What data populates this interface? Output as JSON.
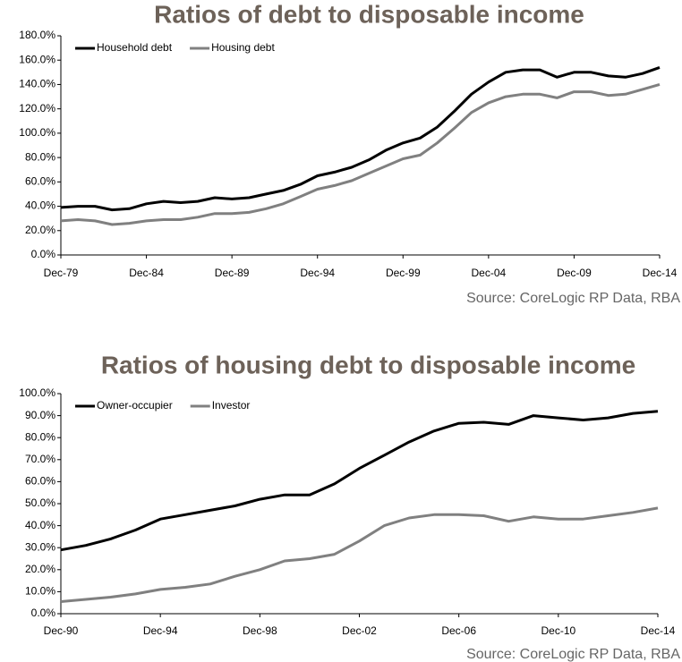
{
  "chart_data": [
    {
      "type": "line",
      "title": "Ratios of debt to disposable income",
      "source": "Source: CoreLogic RP Data, RBA",
      "categories": [
        "Dec-79",
        null,
        null,
        null,
        null,
        "Dec-84",
        null,
        null,
        null,
        null,
        "Dec-89",
        null,
        null,
        null,
        null,
        "Dec-94",
        null,
        null,
        null,
        null,
        "Dec-99",
        null,
        null,
        null,
        null,
        "Dec-04",
        null,
        null,
        null,
        null,
        "Dec-09",
        null,
        null,
        null,
        null,
        "Dec-14"
      ],
      "series": [
        {
          "name": "Household debt",
          "color": "#000000",
          "values": [
            39,
            40,
            40,
            37,
            38,
            42,
            44,
            43,
            44,
            47,
            46,
            47,
            50,
            53,
            58,
            65,
            68,
            72,
            78,
            86,
            92,
            96,
            105,
            118,
            132,
            142,
            150,
            152,
            152,
            146,
            150,
            150,
            147,
            146,
            149,
            154
          ]
        },
        {
          "name": "Housing debt",
          "color": "#808080",
          "values": [
            28,
            29,
            28,
            25,
            26,
            28,
            29,
            29,
            31,
            34,
            34,
            35,
            38,
            42,
            48,
            54,
            57,
            61,
            67,
            73,
            79,
            82,
            92,
            104,
            117,
            125,
            130,
            132,
            132,
            129,
            134,
            134,
            131,
            132,
            136,
            140
          ]
        }
      ],
      "ylim": [
        0,
        180
      ],
      "yticks": [
        {
          "value": 0,
          "label": "0.0%"
        },
        {
          "value": 20,
          "label": "20.0%"
        },
        {
          "value": 40,
          "label": "40.0%"
        },
        {
          "value": 60,
          "label": "60.0%"
        },
        {
          "value": 80,
          "label": "80.0%"
        },
        {
          "value": 100,
          "label": "100.0%"
        },
        {
          "value": 120,
          "label": "120.0%"
        },
        {
          "value": 140,
          "label": "140.0%"
        },
        {
          "value": 160,
          "label": "160.0%"
        },
        {
          "value": 180,
          "label": "180.0%"
        }
      ],
      "grid": false,
      "legend": "upper left"
    },
    {
      "type": "line",
      "title": "Ratios of housing debt to disposable income",
      "source": "Source: CoreLogic RP Data, RBA",
      "categories": [
        "Dec-90",
        null,
        null,
        null,
        "Dec-94",
        null,
        null,
        null,
        "Dec-98",
        null,
        null,
        null,
        "Dec-02",
        null,
        null,
        null,
        "Dec-06",
        null,
        null,
        null,
        "Dec-10",
        null,
        null,
        null,
        "Dec-14"
      ],
      "series": [
        {
          "name": "Owner-occupier",
          "color": "#000000",
          "values": [
            29,
            31,
            34,
            38,
            43,
            45,
            47,
            49,
            52,
            54,
            54,
            59,
            66,
            72,
            78,
            83,
            86.5,
            87,
            86,
            90,
            89,
            88,
            89,
            91,
            92
          ]
        },
        {
          "name": "Investor",
          "color": "#808080",
          "values": [
            5.5,
            6.5,
            7.5,
            9,
            11,
            12,
            13.5,
            17,
            20,
            24,
            25,
            27,
            33,
            40,
            43.5,
            45,
            45,
            44.5,
            42,
            44,
            43,
            43,
            44.5,
            46,
            48
          ]
        }
      ],
      "ylim": [
        0,
        100
      ],
      "yticks": [
        {
          "value": 0,
          "label": "0.0%"
        },
        {
          "value": 10,
          "label": "10.0%"
        },
        {
          "value": 20,
          "label": "20.0%"
        },
        {
          "value": 30,
          "label": "30.0%"
        },
        {
          "value": 40,
          "label": "40.0%"
        },
        {
          "value": 50,
          "label": "50.0%"
        },
        {
          "value": 60,
          "label": "60.0%"
        },
        {
          "value": 70,
          "label": "70.0%"
        },
        {
          "value": 80,
          "label": "80.0%"
        },
        {
          "value": 90,
          "label": "90.0%"
        },
        {
          "value": 100,
          "label": "100.0%"
        }
      ],
      "grid": false,
      "legend": "upper left"
    }
  ]
}
